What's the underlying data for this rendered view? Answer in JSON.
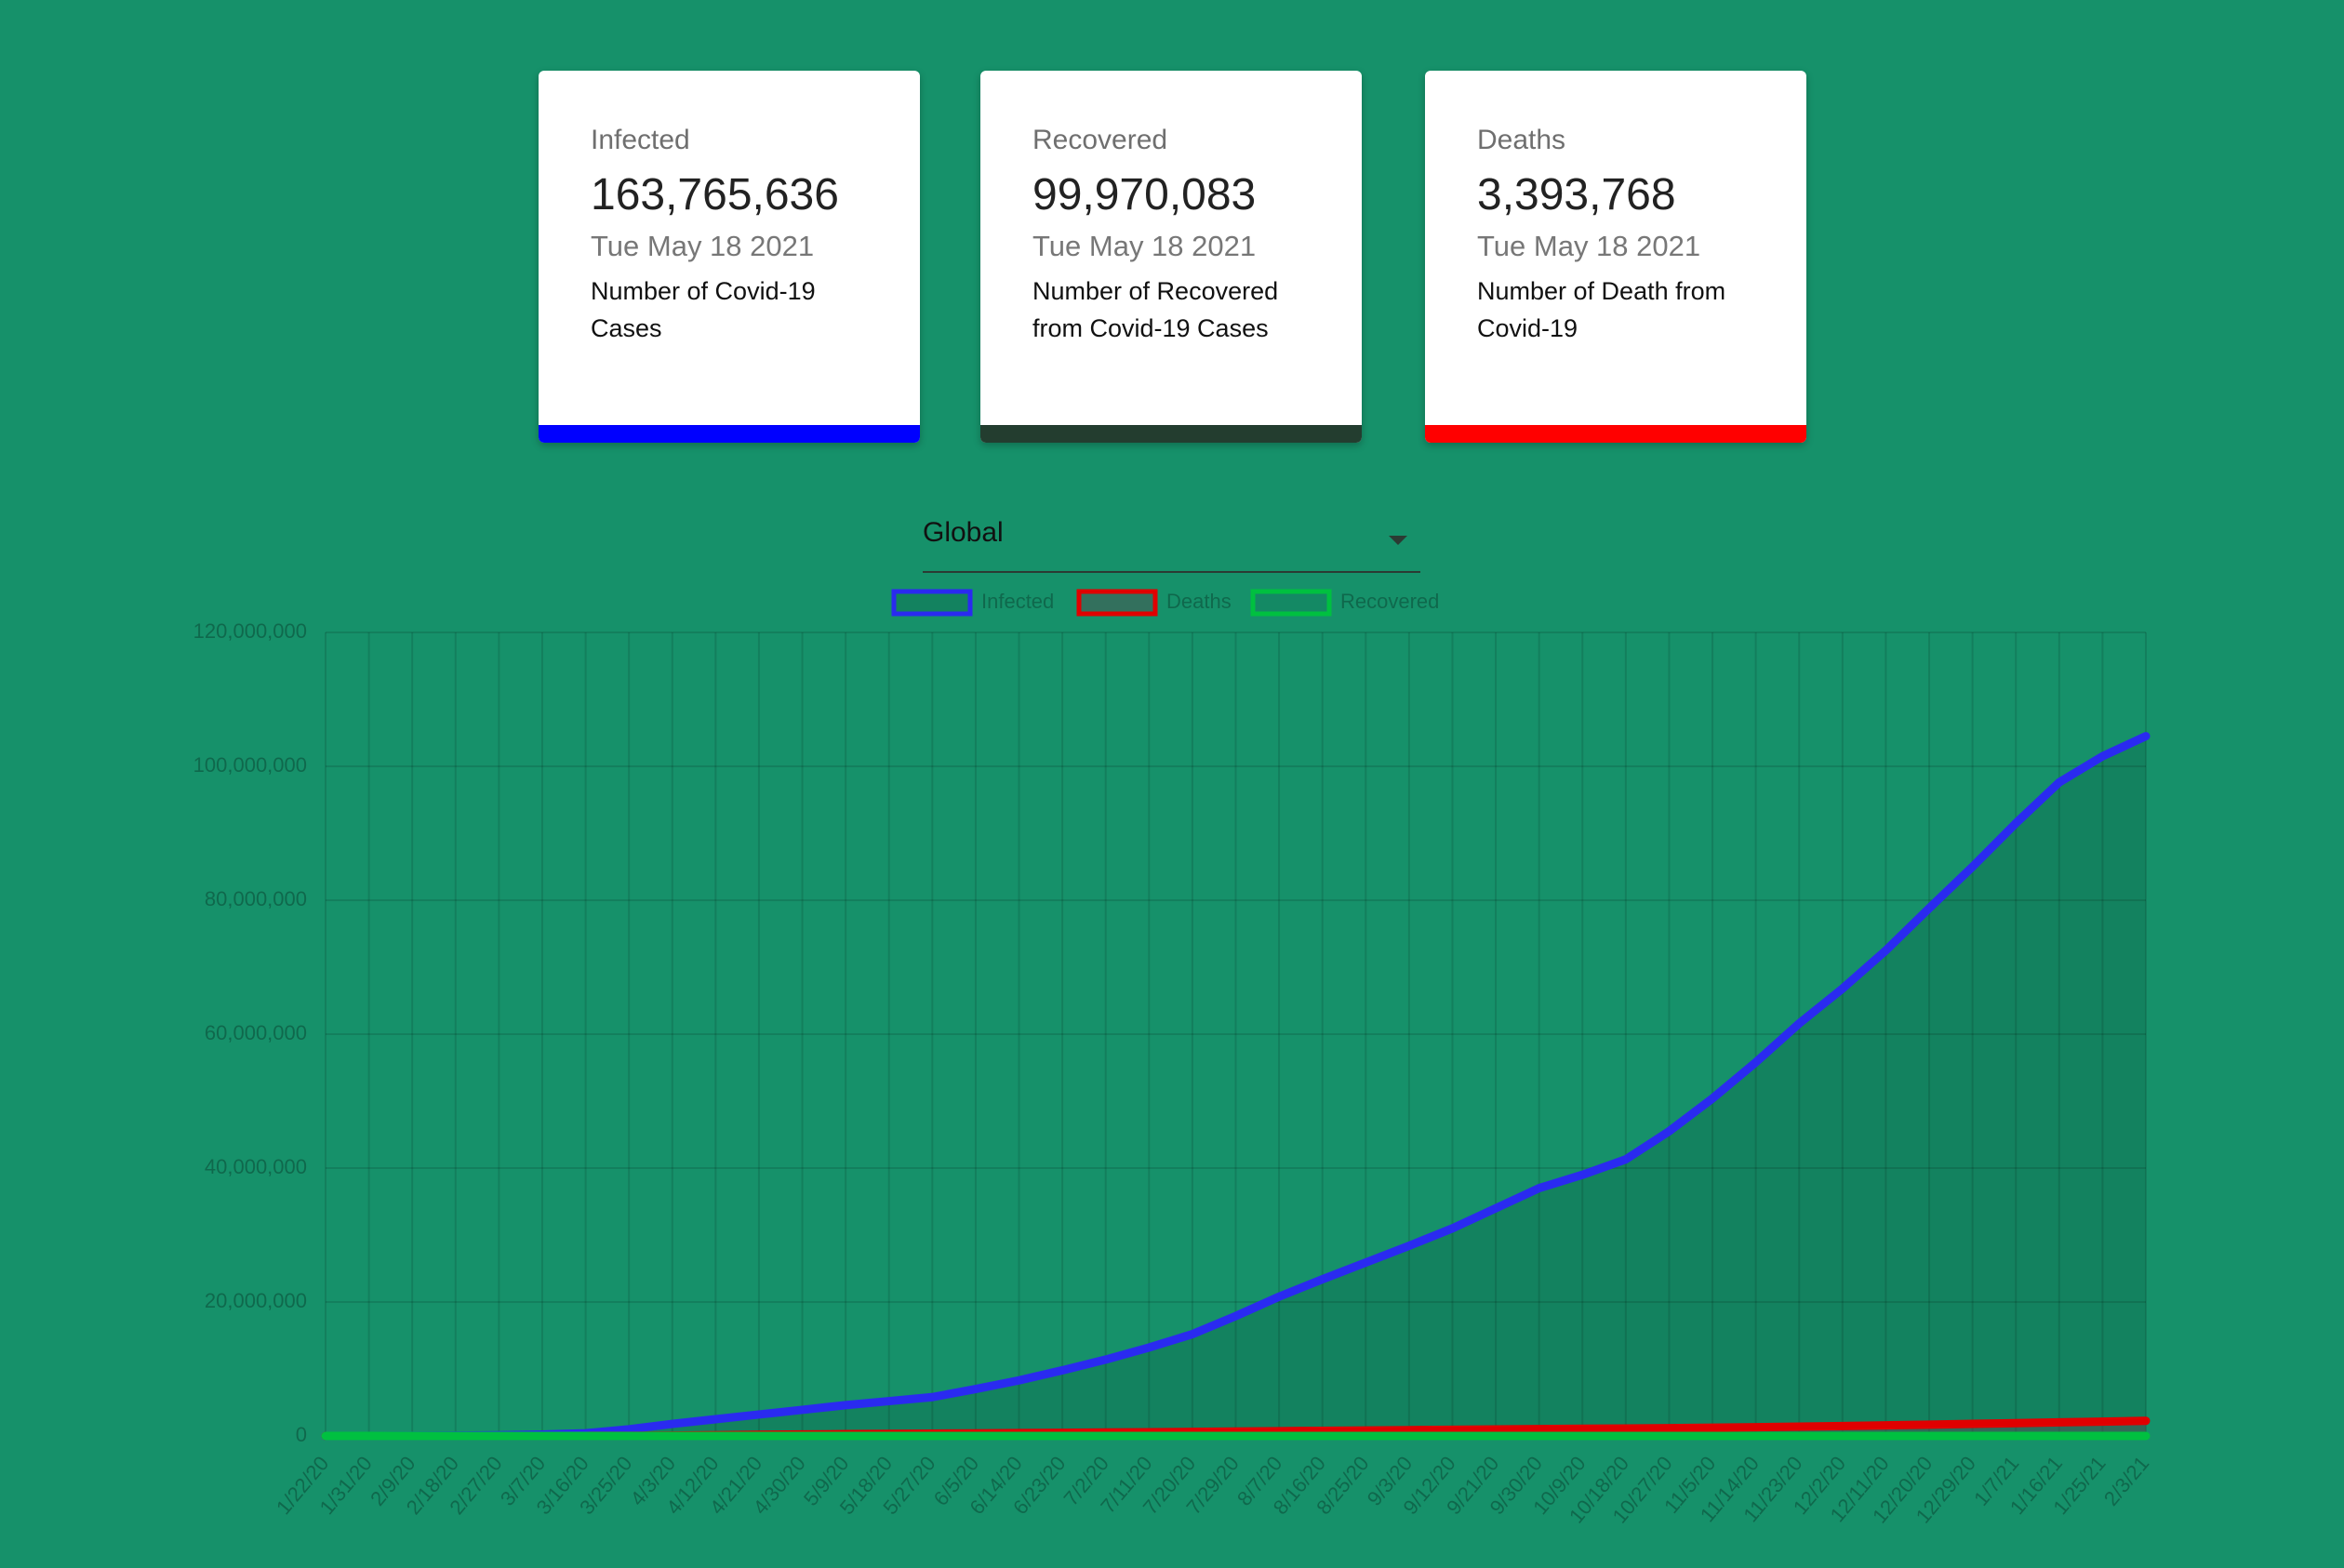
{
  "cards": [
    {
      "title": "Infected",
      "value": "163,765,636",
      "date": "Tue May 18 2021",
      "description": "Number of Covid-19 Cases",
      "color": "#0000ff"
    },
    {
      "title": "Recovered",
      "value": "99,970,083",
      "date": "Tue May 18 2021",
      "description": "Number of Recovered from Covid-19 Cases",
      "color": "#233d2f"
    },
    {
      "title": "Deaths",
      "value": "3,393,768",
      "date": "Tue May 18 2021",
      "description": "Number of Death from Covid-19",
      "color": "#ff0000"
    }
  ],
  "select": {
    "value": "Global"
  },
  "chart_data": {
    "type": "line",
    "categories": [
      "1/22/20",
      "1/31/20",
      "2/9/20",
      "2/18/20",
      "2/27/20",
      "3/7/20",
      "3/16/20",
      "3/25/20",
      "4/3/20",
      "4/12/20",
      "4/21/20",
      "4/30/20",
      "5/9/20",
      "5/18/20",
      "5/27/20",
      "6/5/20",
      "6/14/20",
      "6/23/20",
      "7/2/20",
      "7/11/20",
      "7/20/20",
      "7/29/20",
      "8/7/20",
      "8/16/20",
      "8/25/20",
      "9/3/20",
      "9/12/20",
      "9/21/20",
      "9/30/20",
      "10/9/20",
      "10/18/20",
      "10/27/20",
      "11/5/20",
      "11/14/20",
      "11/23/20",
      "12/2/20",
      "12/11/20",
      "12/20/20",
      "12/29/20",
      "1/7/21",
      "1/16/21",
      "1/25/21",
      "2/3/21"
    ],
    "series": [
      {
        "name": "Infected",
        "color": "#2a2af0",
        "fill": "rgba(0,0,0,0.1)",
        "values": [
          0,
          0,
          10000,
          50000,
          100000,
          200000,
          400000,
          1000000,
          1800000,
          2500000,
          3200000,
          3900000,
          4600000,
          5200000,
          5800000,
          7000000,
          8300000,
          9800000,
          11400000,
          13200000,
          15200000,
          17900000,
          20800000,
          23400000,
          25900000,
          28400000,
          31000000,
          34000000,
          37000000,
          39000000,
          41300000,
          45500000,
          50400000,
          55800000,
          61600000,
          66800000,
          72500000,
          78800000,
          85000000,
          91500000,
          97600000,
          101500000,
          104500000
        ]
      },
      {
        "name": "Deaths",
        "color": "#e00000",
        "fill": "rgba(80,80,80,0.5)",
        "values": [
          0,
          0,
          0,
          2000,
          3000,
          4000,
          8000,
          25000,
          60000,
          110000,
          170000,
          220000,
          270000,
          320000,
          350000,
          390000,
          430000,
          470000,
          520000,
          560000,
          610000,
          660000,
          720000,
          770000,
          820000,
          870000,
          920000,
          970000,
          1020000,
          1070000,
          1110000,
          1160000,
          1230000,
          1300000,
          1390000,
          1480000,
          1580000,
          1690000,
          1800000,
          1910000,
          2030000,
          2140000,
          2260000
        ]
      },
      {
        "name": "Recovered",
        "color": "#00c040",
        "fill": "rgba(0,0,0,0.05)",
        "values": [
          0,
          0,
          0,
          0,
          0,
          0,
          0,
          0,
          0,
          0,
          0,
          0,
          0,
          0,
          0,
          0,
          0,
          0,
          0,
          0,
          0,
          0,
          0,
          0,
          0,
          0,
          0,
          0,
          0,
          0,
          0,
          0,
          0,
          0,
          0,
          0,
          0,
          0,
          0,
          0,
          0,
          0,
          0
        ]
      }
    ],
    "ylim": [
      0,
      120000000
    ],
    "yticks": [
      0,
      {
        "value": 20000000,
        "label": "20,000,000"
      },
      {
        "value": 40000000,
        "label": "40,000,000"
      },
      {
        "value": 60000000,
        "label": "60,000,000"
      },
      {
        "value": 80000000,
        "label": "80,000,000"
      },
      {
        "value": 100000000,
        "label": "100,000,000"
      },
      {
        "value": 120000000,
        "label": "120,000,000"
      }
    ],
    "grid": true,
    "legend": "top"
  }
}
